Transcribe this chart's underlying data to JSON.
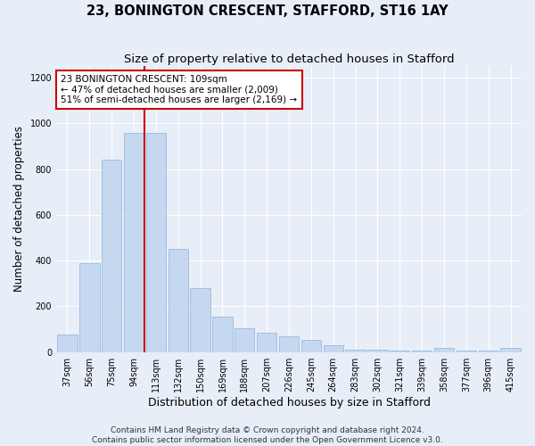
{
  "title": "23, BONINGTON CRESCENT, STAFFORD, ST16 1AY",
  "subtitle": "Size of property relative to detached houses in Stafford",
  "xlabel": "Distribution of detached houses by size in Stafford",
  "ylabel": "Number of detached properties",
  "categories": [
    "37sqm",
    "56sqm",
    "75sqm",
    "94sqm",
    "113sqm",
    "132sqm",
    "150sqm",
    "169sqm",
    "188sqm",
    "207sqm",
    "226sqm",
    "245sqm",
    "264sqm",
    "283sqm",
    "302sqm",
    "321sqm",
    "339sqm",
    "358sqm",
    "377sqm",
    "396sqm",
    "415sqm"
  ],
  "values": [
    75,
    390,
    840,
    960,
    960,
    450,
    280,
    155,
    105,
    85,
    70,
    55,
    30,
    10,
    10,
    5,
    5,
    20,
    5,
    5,
    20
  ],
  "bar_color": "#c5d8f0",
  "bar_edgecolor": "#8ab4d8",
  "vline_x_index": 4,
  "vline_color": "#cc0000",
  "annotation_text": "23 BONINGTON CRESCENT: 109sqm\n← 47% of detached houses are smaller (2,009)\n51% of semi-detached houses are larger (2,169) →",
  "annotation_boxcolor": "white",
  "annotation_edgecolor": "#cc0000",
  "ylim": [
    0,
    1250
  ],
  "yticks": [
    0,
    200,
    400,
    600,
    800,
    1000,
    1200
  ],
  "footer_line1": "Contains HM Land Registry data © Crown copyright and database right 2024.",
  "footer_line2": "Contains public sector information licensed under the Open Government Licence v3.0.",
  "background_color": "#e8eef8",
  "plot_background": "#e8eef8",
  "grid_color": "#ffffff",
  "title_fontsize": 10.5,
  "subtitle_fontsize": 9.5,
  "axis_label_fontsize": 8.5,
  "tick_fontsize": 7,
  "annotation_fontsize": 7.5,
  "footer_fontsize": 6.5
}
